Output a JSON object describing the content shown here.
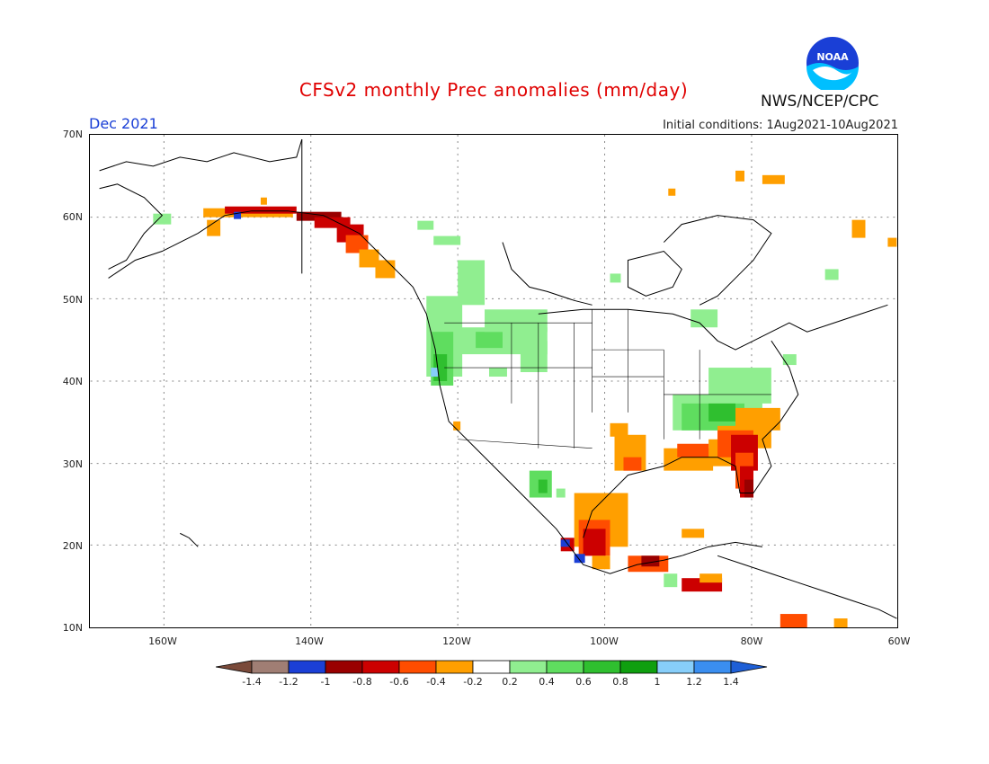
{
  "title": "CFSv2 monthly Prec anomalies (mm/day)",
  "month": "Dec 2021",
  "initial_conditions": "Initial conditions: 1Aug2021-10Aug2021",
  "agency": "NWS/NCEP/CPC",
  "logo_text": "NOAA",
  "lat_labels": [
    "70N",
    "60N",
    "50N",
    "40N",
    "30N",
    "20N",
    "10N"
  ],
  "lon_labels": [
    "160W",
    "140W",
    "120W",
    "100W",
    "80W",
    "60W"
  ],
  "colorbar": {
    "labels": [
      "-1.4",
      "-1.2",
      "-1",
      "-0.8",
      "-0.6",
      "-0.4",
      "-0.2",
      "0.2",
      "0.4",
      "0.6",
      "0.8",
      "1",
      "1.2",
      "1.4"
    ],
    "colors": [
      "#7a4a3a",
      "#a07e74",
      "#1b3fd6",
      "#990000",
      "#cc0000",
      "#ff4d00",
      "#ff9f00",
      "#ffffff",
      "#90ee90",
      "#5fdd5f",
      "#2fbf2f",
      "#0f9f0f",
      "#87cefa",
      "#3a8ef0",
      "#1e5fd6"
    ]
  },
  "colors": {
    "title": "#e00000",
    "month": "#1a3fd6",
    "dry_strong": "#990000",
    "dry_mid": "#cc0000",
    "dry_light": "#ff4d00",
    "dry_weak": "#ff9f00",
    "wet_weak": "#90ee90",
    "wet_light": "#5fdd5f",
    "wet_mid": "#2fbf2f",
    "wet_strong": "#0f9f0f"
  }
}
